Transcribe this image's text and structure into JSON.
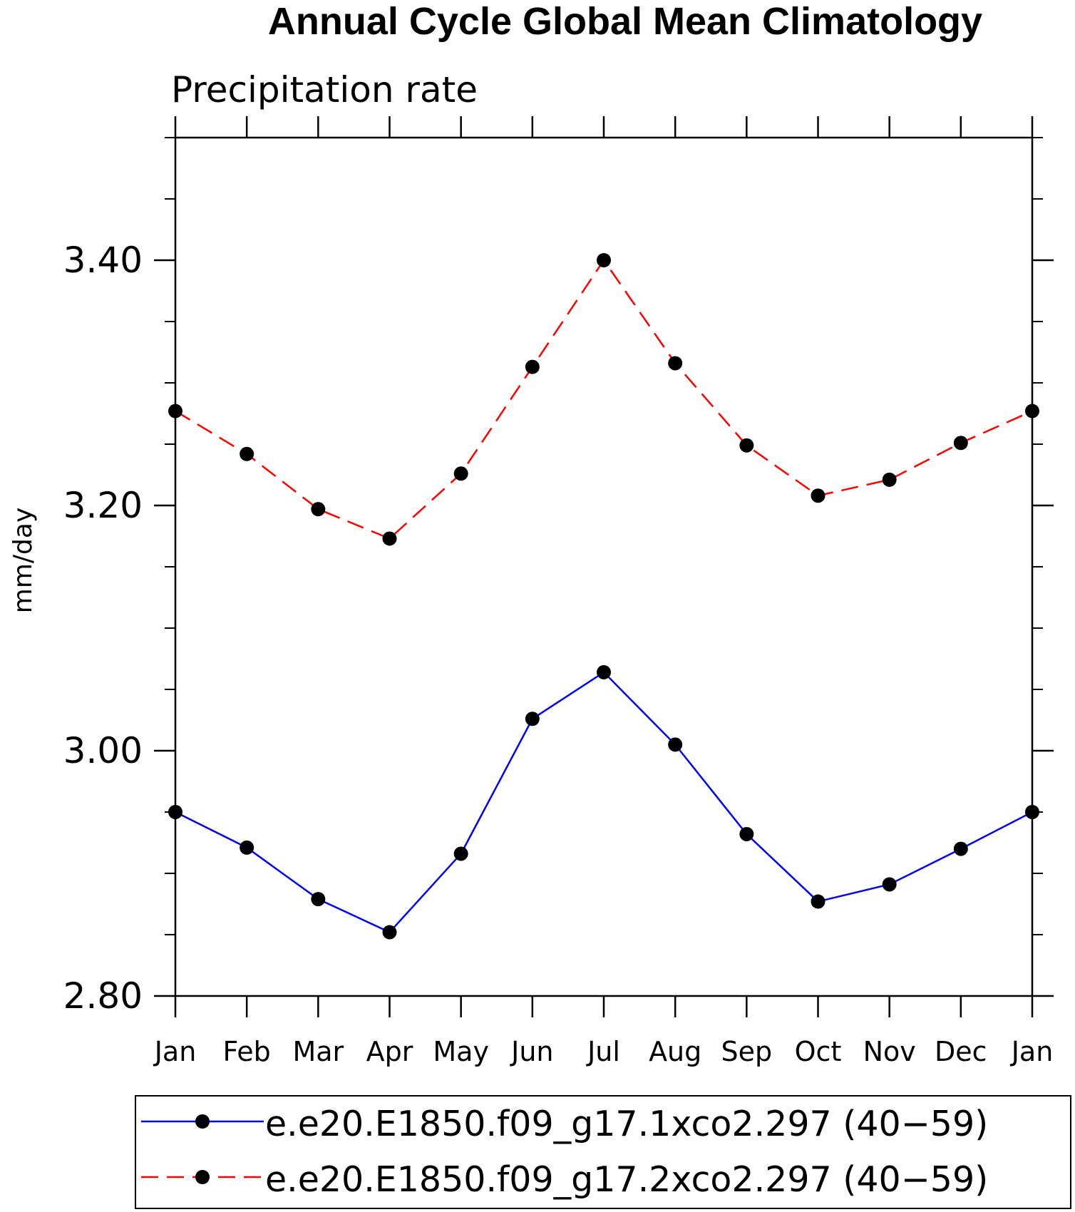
{
  "chart_data": {
    "type": "line",
    "title": "Annual Cycle Global Mean Climatology",
    "subtitle": "Precipitation rate",
    "ylabel": "mm/day",
    "xlabel": "",
    "categories": [
      "Jan",
      "Feb",
      "Mar",
      "Apr",
      "May",
      "Jun",
      "Jul",
      "Aug",
      "Sep",
      "Oct",
      "Nov",
      "Dec",
      "Jan"
    ],
    "ylim": [
      2.8,
      3.5
    ],
    "yticks": [
      2.8,
      3.0,
      3.2,
      3.4
    ],
    "ytick_labels": [
      "2.80",
      "3.00",
      "3.20",
      "3.40"
    ],
    "yminor_step": 0.05,
    "series": [
      {
        "name": "e.e20.E1850.f09_g17.1xco2.297 (40−59)",
        "color": "#0000ff",
        "dash": "solid",
        "marker": "filled-circle",
        "values": [
          2.95,
          2.921,
          2.879,
          2.852,
          2.916,
          3.026,
          3.064,
          3.005,
          2.932,
          2.877,
          2.891,
          2.92,
          2.95
        ]
      },
      {
        "name": "e.e20.E1850.f09_g17.2xco2.297 (40−59)",
        "color": "#ff0000",
        "dash": "dashed",
        "marker": "filled-circle",
        "values": [
          3.277,
          3.242,
          3.197,
          3.173,
          3.226,
          3.313,
          3.4,
          3.316,
          3.249,
          3.208,
          3.221,
          3.251,
          3.277
        ]
      }
    ],
    "legend_position": "bottom"
  }
}
